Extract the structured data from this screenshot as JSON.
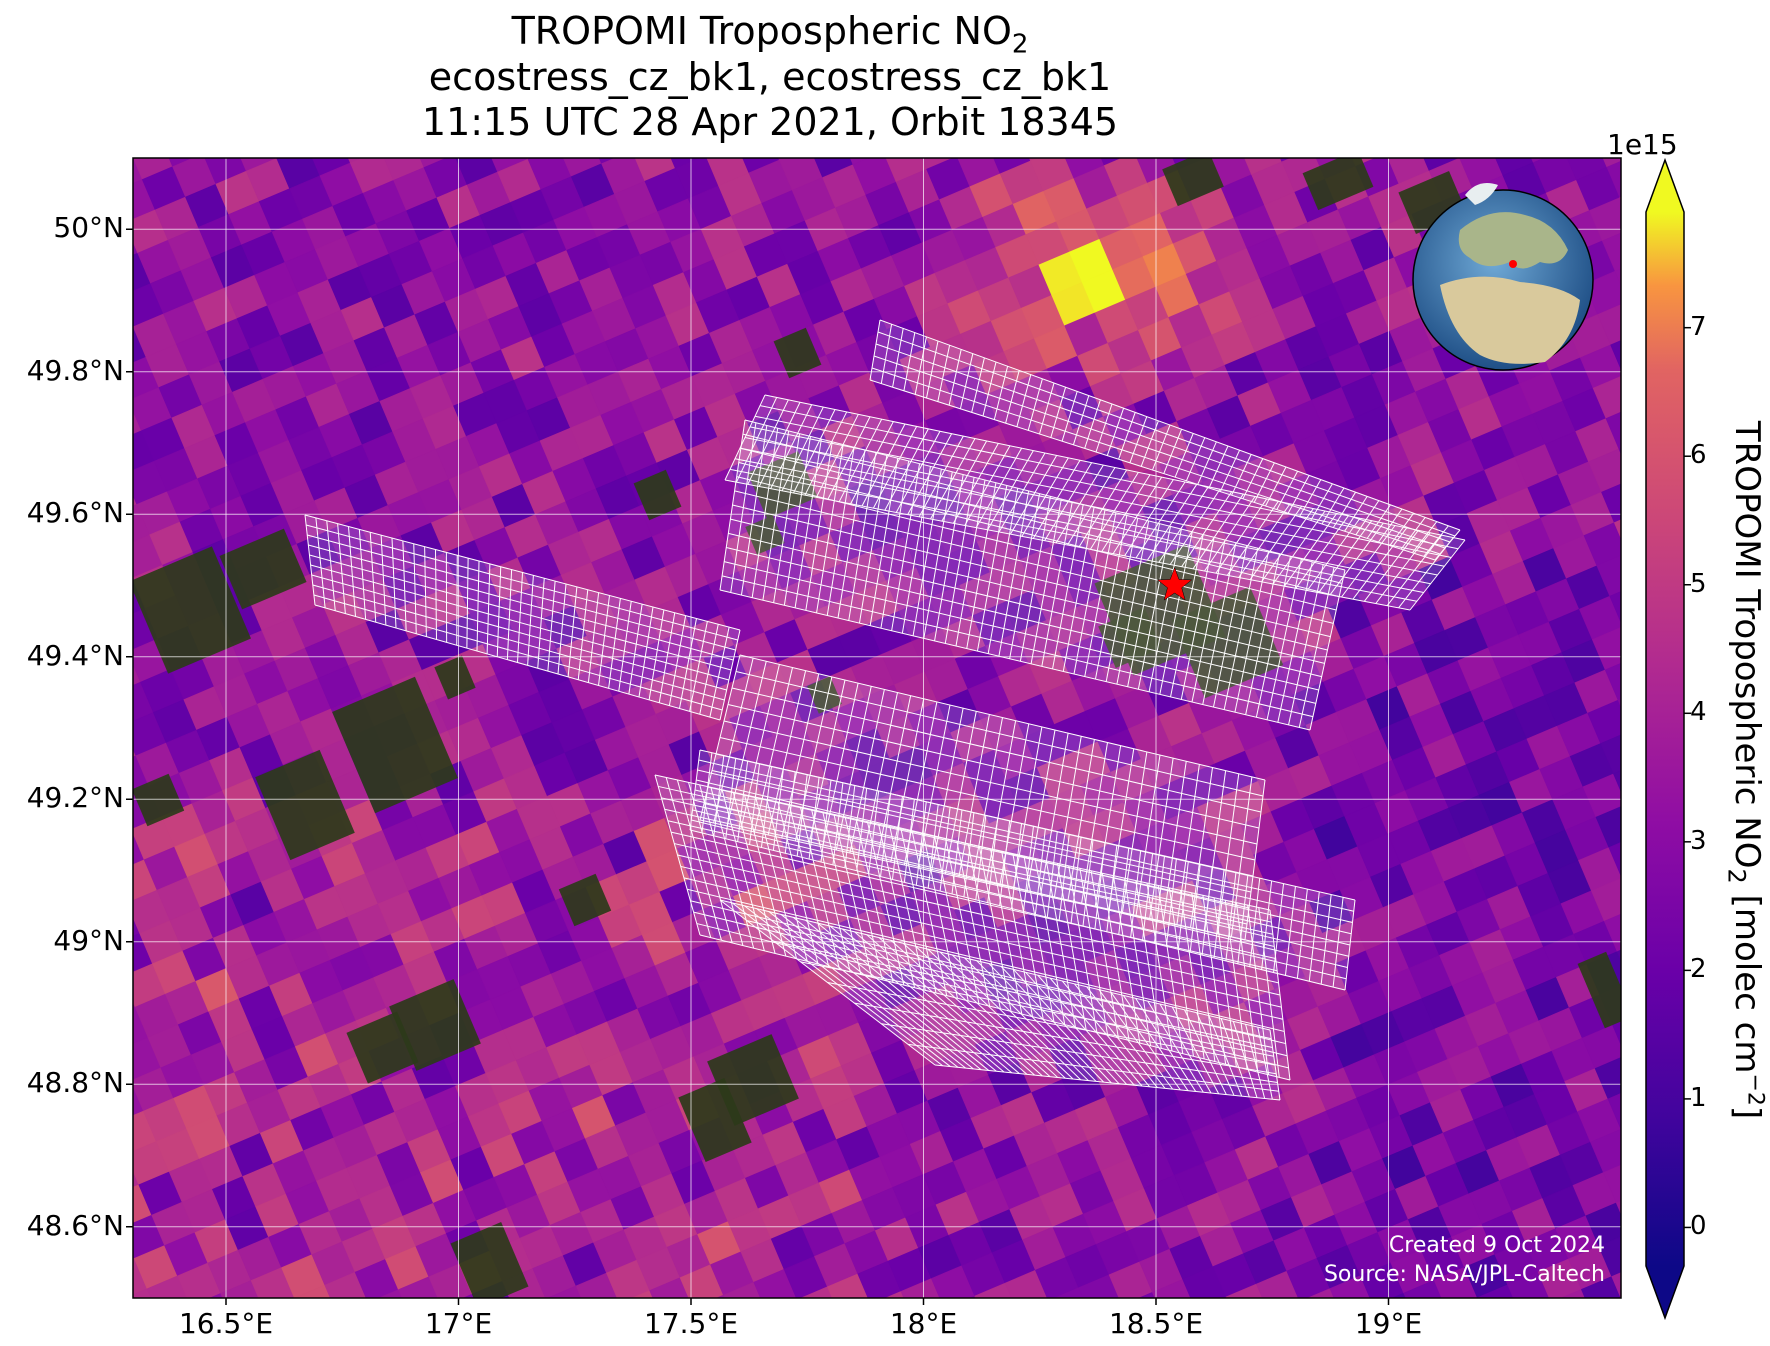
{
  "title": {
    "line1": "TROPOMI Tropospheric NO",
    "line1_sub": "2",
    "line2": "ecostress_cz_bk1, ecostress_cz_bk1",
    "line3": "11:15 UTC 28 Apr 2021, Orbit 18345"
  },
  "map": {
    "lon_range": [
      16.3,
      19.5
    ],
    "lat_range": [
      48.5,
      50.1
    ],
    "xticks": [
      {
        "value": 16.5,
        "label": "16.5°E"
      },
      {
        "value": 17.0,
        "label": "17°E"
      },
      {
        "value": 17.5,
        "label": "17.5°E"
      },
      {
        "value": 18.0,
        "label": "18°E"
      },
      {
        "value": 18.5,
        "label": "18.5°E"
      },
      {
        "value": 19.0,
        "label": "19°E"
      }
    ],
    "yticks": [
      {
        "value": 50.0,
        "label": "50°N"
      },
      {
        "value": 49.8,
        "label": "49.8°N"
      },
      {
        "value": 49.6,
        "label": "49.6°N"
      },
      {
        "value": 49.4,
        "label": "49.4°N"
      },
      {
        "value": 49.2,
        "label": "49.2°N"
      },
      {
        "value": 49.0,
        "label": "49°N"
      },
      {
        "value": 48.8,
        "label": "48.8°N"
      },
      {
        "value": 48.6,
        "label": "48.6°N"
      }
    ],
    "site_marker": {
      "lon": 18.54,
      "lat": 49.5,
      "color": "#ff0000"
    },
    "gridline_color": "#ffffff",
    "footprint_color": "#ffffff",
    "inset": "globe-europe-icon"
  },
  "colorbar": {
    "title": "TROPOMI Tropospheric NO",
    "title_sub": "2",
    "title_unit": " [molec cm",
    "title_sup": "−2",
    "title_end": "]",
    "exponent_label": "1e15",
    "range": [
      -0.3,
      7.9
    ],
    "ticks": [
      {
        "value": 0,
        "label": "0"
      },
      {
        "value": 1,
        "label": "1"
      },
      {
        "value": 2,
        "label": "2"
      },
      {
        "value": 3,
        "label": "3"
      },
      {
        "value": 4,
        "label": "4"
      },
      {
        "value": 5,
        "label": "5"
      },
      {
        "value": 6,
        "label": "6"
      },
      {
        "value": 7,
        "label": "7"
      }
    ],
    "colormap": "plasma",
    "extend": "both"
  },
  "credits": {
    "created": "Created 9 Oct 2024",
    "source": "Source: NASA/JPL-Caltech"
  }
}
